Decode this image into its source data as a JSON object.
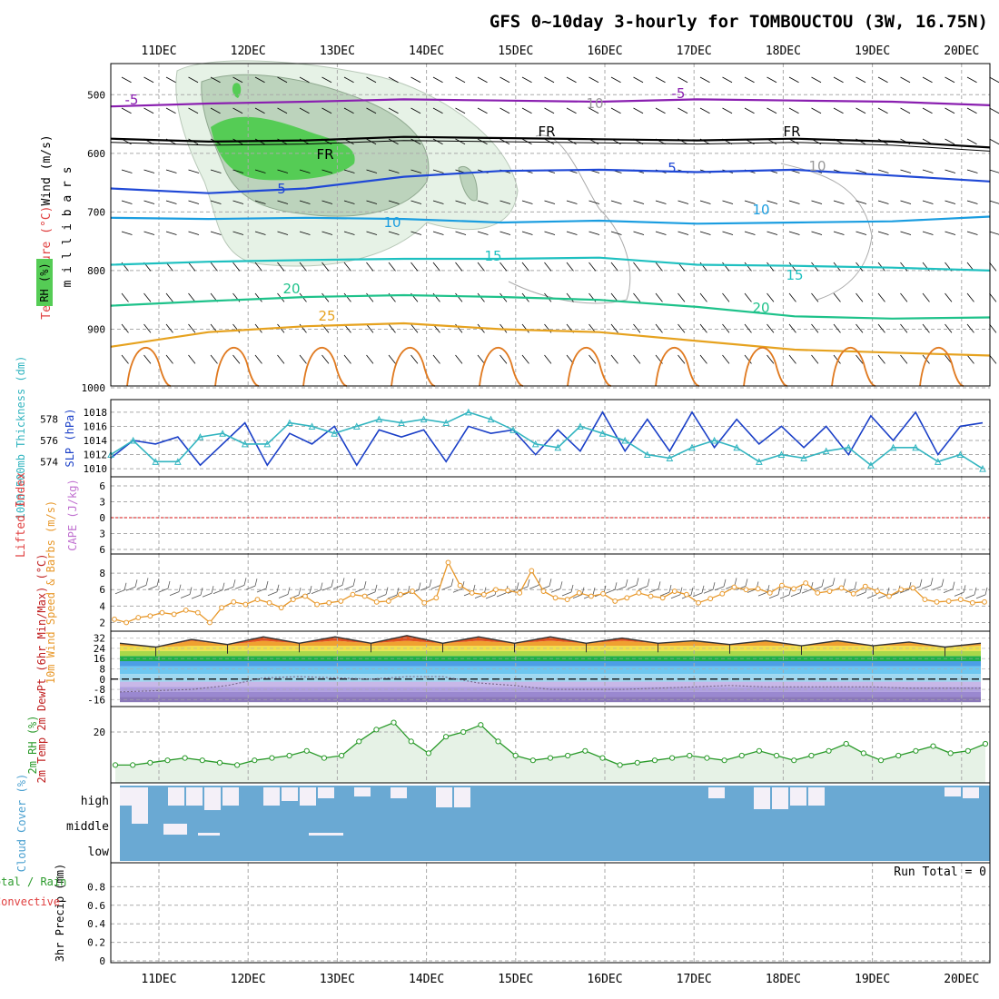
{
  "title": "GFS 0~10day 3-hourly for TOMBOUCTOU (3W, 16.75N)",
  "colors": {
    "grid": "#aaaaaa",
    "rh_fill_light": "#e6f2e6",
    "rh_fill_mid": "#bcd3bc",
    "rh_fill_dark": "#7fb47f",
    "rh_green": "#55cc55",
    "cloud_blue": "#6aa9d3",
    "cloud_white": "#f4f0f8",
    "slp": "#1a3fc7",
    "thick": "#33b5c0",
    "wind_speed": "#e8982a",
    "lifted_zero": "#e04040",
    "rh2m": "#2a9a2a"
  },
  "chart_data": [
    {
      "type": "line",
      "panel": "upper_air",
      "title": "Temperature (°C) Wind (m/s) RH (%)",
      "ylabel": "m i l l i b a r s",
      "x": [
        "11DEC",
        "12DEC",
        "13DEC",
        "14DEC",
        "15DEC",
        "16DEC",
        "17DEC",
        "18DEC",
        "19DEC",
        "20DEC"
      ],
      "yticks": [
        "500",
        "600",
        "700",
        "800",
        "900",
        "1000"
      ],
      "ylim": [
        1000,
        450
      ],
      "series": [
        {
          "name": "-5",
          "color": "#8a1fb0",
          "values": [
            520,
            515,
            512,
            508,
            510,
            512,
            508,
            510,
            512,
            518
          ]
        },
        {
          "name": "FR",
          "color": "#000000",
          "values": [
            575,
            580,
            578,
            572,
            574,
            576,
            578,
            575,
            580,
            590
          ]
        },
        {
          "name": "5",
          "color": "#1f48d6",
          "values": [
            660,
            668,
            660,
            640,
            630,
            628,
            632,
            628,
            638,
            648
          ]
        },
        {
          "name": "10",
          "color": "#1a9de0",
          "values": [
            710,
            712,
            710,
            712,
            718,
            715,
            720,
            718,
            716,
            708
          ]
        },
        {
          "name": "15",
          "color": "#1ec0c0",
          "values": [
            790,
            785,
            782,
            780,
            780,
            778,
            790,
            792,
            795,
            800
          ]
        },
        {
          "name": "20",
          "color": "#1ec28a",
          "values": [
            860,
            852,
            845,
            842,
            845,
            850,
            862,
            878,
            882,
            880
          ]
        },
        {
          "name": "25",
          "color": "#e6a21f",
          "values": [
            930,
            905,
            895,
            890,
            900,
            905,
            920,
            935,
            940,
            945
          ]
        }
      ],
      "annotations": [
        "-5",
        "-5",
        "FR",
        "FR",
        "FR",
        "5",
        "5",
        "10",
        "10",
        "15",
        "15",
        "20",
        "20",
        "25",
        "10",
        "10"
      ]
    },
    {
      "type": "line",
      "panel": "slp_thickness",
      "ylabel_left": "1000-500mb Thickness (dm)",
      "ylabel_right": "SLP (hPa)",
      "yticks_left": [
        "574",
        "576",
        "578"
      ],
      "yticks_right": [
        "1010",
        "1012",
        "1014",
        "1016",
        "1018"
      ],
      "series": [
        {
          "name": "SLP",
          "color": "#1a3fc7",
          "values": [
            1011.5,
            1014,
            1013.5,
            1014.5,
            1010.5,
            1013.5,
            1016.5,
            1010.5,
            1015,
            1013.5,
            1016,
            1010.5,
            1015.5,
            1014.5,
            1015.5,
            1011,
            1016,
            1015,
            1015.5,
            1012,
            1015.5,
            1012.5,
            1018,
            1012.5,
            1017,
            1012.5,
            1018,
            1013,
            1017,
            1013.5,
            1016,
            1013,
            1016,
            1012,
            1017.5,
            1014,
            1018,
            1012,
            1016,
            1016.5
          ]
        },
        {
          "name": "Thickness",
          "color": "#33b5c0",
          "values": [
            1012,
            1014,
            1011,
            1011,
            1014.5,
            1015,
            1013.5,
            1013.5,
            1016.5,
            1016,
            1015,
            1016,
            1017,
            1016.5,
            1017,
            1016.5,
            1018,
            1017,
            1015.5,
            1013.5,
            1013,
            1016,
            1015,
            1014,
            1012,
            1011.5,
            1013,
            1014,
            1013,
            1011,
            1012,
            1011.5,
            1012.5,
            1013,
            1010.5,
            1013,
            1013,
            1011,
            1012,
            1010
          ]
        }
      ]
    },
    {
      "type": "line",
      "panel": "lifted_cape",
      "ylabel_left": "Lifted Index",
      "ylabel_right": "CAPE (J/kg)",
      "yticks": [
        "-6",
        "-3",
        "0",
        "3",
        "6"
      ],
      "ylim": [
        -6,
        6
      ],
      "series": [
        {
          "name": "Lifted zero",
          "color": "#e04040",
          "values": [
            0,
            0
          ]
        }
      ]
    },
    {
      "type": "line",
      "panel": "wind10m",
      "ylabel": "10m Wind Speed & Barbs (m/s)",
      "yticks": [
        "2",
        "4",
        "6",
        "8"
      ],
      "ylim": [
        1.5,
        10
      ],
      "series": [
        {
          "name": "10m Wind Speed",
          "color": "#e8982a",
          "values": [
            2.4,
            2.0,
            2.6,
            2.8,
            3.2,
            3.0,
            3.5,
            3.2,
            2.0,
            3.8,
            4.5,
            4.2,
            4.8,
            4.4,
            3.8,
            4.8,
            5.2,
            4.2,
            4.4,
            4.6,
            5.4,
            5.2,
            4.5,
            4.6,
            5.4,
            5.8,
            4.4,
            5.0,
            9.3,
            6.5,
            5.6,
            5.4,
            6.0,
            5.9,
            5.6,
            8.3,
            5.8,
            5.0,
            4.8,
            5.6,
            5.2,
            5.5,
            4.6,
            5.0,
            5.6,
            5.2,
            5.0,
            5.8,
            5.4,
            4.4,
            4.9,
            5.5,
            6.3,
            6.0,
            6.1,
            5.6,
            6.5,
            6.1,
            6.8,
            5.6,
            5.8,
            6.2,
            5.5,
            6.4,
            5.8,
            5.2,
            6.0,
            6.2,
            4.8,
            4.5,
            4.6,
            4.8,
            4.4,
            4.5
          ]
        }
      ]
    },
    {
      "type": "area",
      "panel": "temp2m",
      "ylabel": "2m Temp 2m DewPt (6hr Min/Max) (°C)",
      "yticks": [
        "-16",
        "-8",
        "0",
        "8",
        "16",
        "24",
        "32"
      ],
      "ylim": [
        -20,
        36
      ],
      "series": [
        {
          "name": "2m Temp",
          "color": "#333333",
          "values": [
            28,
            25,
            31,
            27,
            33,
            28,
            33,
            28,
            34,
            28,
            33,
            28,
            33,
            28,
            32,
            28,
            30,
            27,
            30,
            26,
            30,
            26,
            29,
            25,
            28
          ]
        },
        {
          "name": "2m DewPt",
          "color": "#776688",
          "values": [
            -10,
            -9,
            -8,
            -5,
            1,
            2,
            1,
            0,
            2,
            2,
            -3,
            -5,
            -8,
            -8,
            -8,
            -7,
            -6,
            -5,
            -6,
            -6,
            -6,
            -6,
            -7,
            -7,
            -7
          ]
        }
      ]
    },
    {
      "type": "area",
      "panel": "rh2m",
      "ylabel": "2m RH (%)",
      "yticks": [
        "20"
      ],
      "ylim": [
        0,
        30
      ],
      "series": [
        {
          "name": "2m RH",
          "color": "#2a9a2a",
          "values": [
            6,
            6,
            7,
            8,
            9,
            8,
            7,
            6,
            8,
            9,
            10,
            12,
            9,
            10,
            16,
            21,
            24,
            16,
            11,
            18,
            20,
            23,
            16,
            10,
            8,
            9,
            10,
            12,
            9,
            6,
            7,
            8,
            9,
            10,
            9,
            8,
            10,
            12,
            10,
            8,
            10,
            12,
            15,
            11,
            8,
            10,
            12,
            14,
            11,
            12,
            15
          ]
        }
      ]
    },
    {
      "type": "heatmap",
      "panel": "cloud",
      "ylabel": "Cloud Cover (%)",
      "levels": [
        "high",
        "middle",
        "low"
      ]
    },
    {
      "type": "bar",
      "panel": "precip",
      "ylabel": "3hr Precip (mm)",
      "ylabel_left": "Total / Rain Convective",
      "yticks": [
        "0",
        "0.2",
        "0.4",
        "0.6",
        "0.8"
      ],
      "ylim": [
        0,
        1
      ],
      "run_total": "Run Total = 0",
      "values": []
    }
  ]
}
